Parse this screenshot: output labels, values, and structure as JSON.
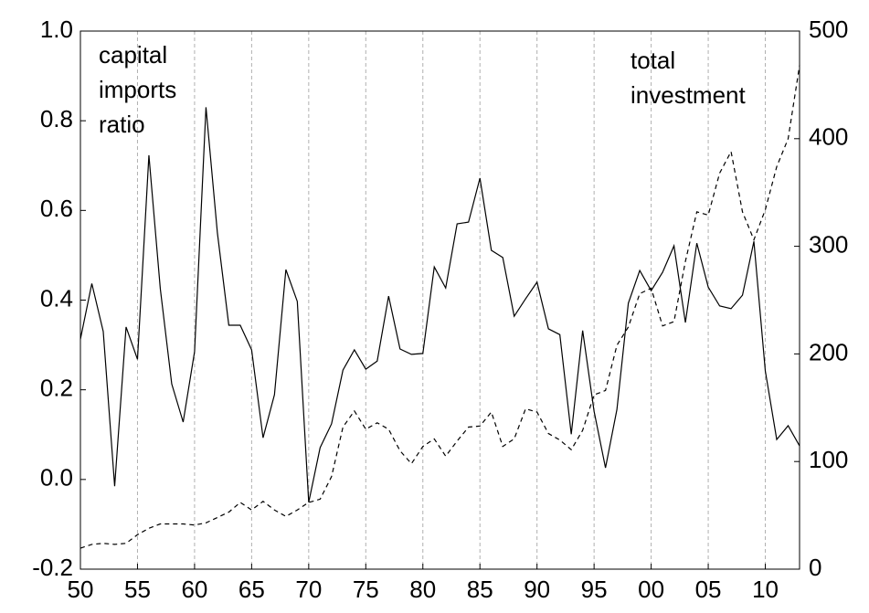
{
  "chart_data": {
    "type": "line",
    "annotations": [
      {
        "lines": [
          "capital",
          "imports",
          "ratio"
        ]
      },
      {
        "lines": [
          "total",
          "investment"
        ]
      }
    ],
    "x": [
      1950,
      1951,
      1952,
      1953,
      1954,
      1955,
      1956,
      1957,
      1958,
      1959,
      1960,
      1961,
      1962,
      1963,
      1964,
      1965,
      1966,
      1967,
      1968,
      1969,
      1970,
      1971,
      1972,
      1973,
      1974,
      1975,
      1976,
      1977,
      1978,
      1979,
      1980,
      1981,
      1982,
      1983,
      1984,
      1985,
      1986,
      1987,
      1988,
      1989,
      1990,
      1991,
      1992,
      1993,
      1994,
      1995,
      1996,
      1997,
      1998,
      1999,
      2000,
      2001,
      2002,
      2003,
      2004,
      2005,
      2006,
      2007,
      2008,
      2009,
      2010,
      2011,
      2012,
      2013
    ],
    "series": [
      {
        "color": "#000000",
        "dash": "solid",
        "axis": "y",
        "values": [
          0.313,
          0.437,
          0.33,
          -0.015,
          0.34,
          0.268,
          0.723,
          0.425,
          0.213,
          0.128,
          0.285,
          0.83,
          0.55,
          0.344,
          0.344,
          0.289,
          0.093,
          0.189,
          0.468,
          0.397,
          -0.051,
          0.071,
          0.124,
          0.244,
          0.289,
          0.246,
          0.264,
          0.409,
          0.291,
          0.279,
          0.281,
          0.474,
          0.427,
          0.57,
          0.574,
          0.672,
          0.511,
          0.495,
          0.364,
          0.403,
          0.44,
          0.336,
          0.323,
          0.101,
          0.332,
          0.152,
          0.026,
          0.156,
          0.393,
          0.466,
          0.421,
          0.462,
          0.521,
          0.35,
          0.527,
          0.429,
          0.387,
          0.381,
          0.411,
          0.531,
          0.242,
          0.089,
          0.12,
          0.075
        ]
      },
      {
        "color": "#000000",
        "dash": "dashed",
        "axis": "y2",
        "values": [
          19.5,
          23,
          24,
          23,
          24,
          32,
          38,
          42,
          42,
          42,
          41,
          43,
          48,
          53,
          62,
          55,
          63,
          55,
          49,
          55,
          62,
          65,
          86,
          132,
          147,
          130,
          136,
          130,
          110,
          98,
          114,
          121,
          105,
          119,
          132,
          133,
          146,
          114,
          121,
          149,
          146,
          126,
          120,
          111,
          129,
          162,
          166,
          208,
          225,
          256,
          261,
          226,
          230,
          286,
          332,
          329,
          368,
          388,
          332,
          306,
          334,
          374,
          400,
          468
        ]
      }
    ],
    "xlim": [
      1950,
      2013
    ],
    "xticks": [
      {
        "value": 1950,
        "label": "50"
      },
      {
        "value": 1955,
        "label": "55"
      },
      {
        "value": 1960,
        "label": "60"
      },
      {
        "value": 1965,
        "label": "65"
      },
      {
        "value": 1970,
        "label": "70"
      },
      {
        "value": 1975,
        "label": "75"
      },
      {
        "value": 1980,
        "label": "80"
      },
      {
        "value": 1985,
        "label": "85"
      },
      {
        "value": 1990,
        "label": "90"
      },
      {
        "value": 1995,
        "label": "95"
      },
      {
        "value": 2000,
        "label": "00"
      },
      {
        "value": 2005,
        "label": "05"
      },
      {
        "value": 2010,
        "label": "10"
      }
    ],
    "ylim": [
      -0.2,
      1.0
    ],
    "yticks": [
      {
        "value": -0.2,
        "label": "-0.2"
      },
      {
        "value": 0,
        "label": "0.0"
      },
      {
        "value": 0.2,
        "label": "0.2"
      },
      {
        "value": 0.4,
        "label": "0.4"
      },
      {
        "value": 0.6,
        "label": "0.6"
      },
      {
        "value": 0.8,
        "label": "0.8"
      },
      {
        "value": 1.0,
        "label": "1.0"
      }
    ],
    "y2lim": [
      0,
      500
    ],
    "y2ticks": [
      0,
      100,
      200,
      300,
      400,
      500
    ],
    "grid": "vertical"
  }
}
